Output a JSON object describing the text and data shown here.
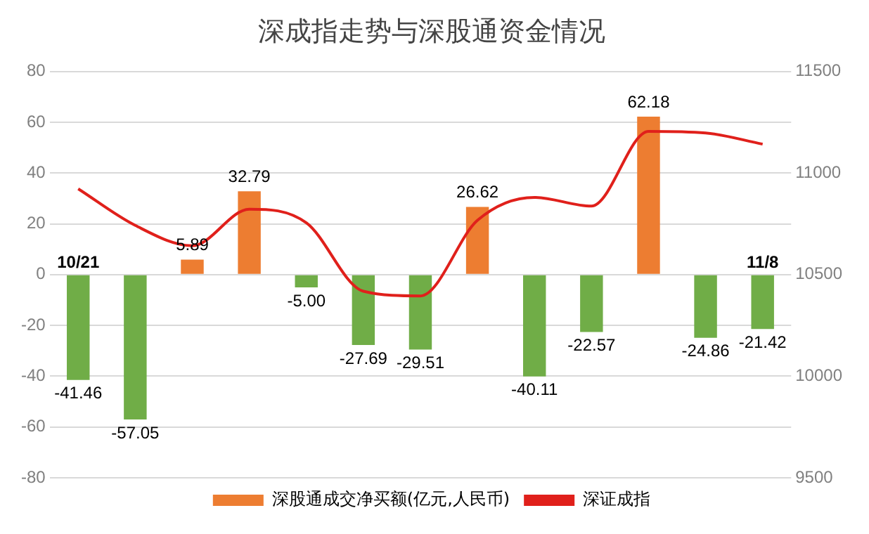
{
  "chart_data": {
    "type": "bar",
    "title": "深成指走势与深股通资金情况",
    "categories": [
      null,
      null,
      null,
      null,
      null,
      null,
      null,
      null,
      null,
      null,
      null,
      null,
      null
    ],
    "series": [
      {
        "name": "深股通成交净买额(亿元,人民币)",
        "color": "#ed7d31",
        "colors": [
          "#70ad47",
          "#70ad47",
          "#ed7d31",
          "#ed7d31",
          "#70ad47",
          "#70ad47",
          "#70ad47",
          "#ed7d31",
          "#70ad47",
          "#70ad47",
          "#ed7d31",
          "#70ad47",
          "#70ad47"
        ],
        "values": [
          -41.46,
          -57.05,
          5.89,
          32.79,
          -5.0,
          -27.69,
          -29.51,
          26.62,
          -40.11,
          -22.57,
          62.18,
          -24.86,
          -21.42
        ],
        "value_labels": [
          "-41.46",
          "-57.05",
          "5.89",
          "32.79",
          "-5.00",
          "-27.69",
          "-29.51",
          "26.62",
          "-40.11",
          "-22.57",
          "62.18",
          "-24.86",
          "-21.42"
        ]
      },
      {
        "name": "深证成指",
        "type": "line",
        "axis": "y2",
        "color": "#e0201b",
        "marker": "none",
        "values": [
          10922,
          10742,
          10642,
          10822,
          10755,
          10418,
          10395,
          10767,
          10880,
          10837,
          11205,
          11197,
          11142
        ]
      }
    ],
    "annotations": [
      "10/21",
      "11/8"
    ],
    "ylim": [
      -80,
      80
    ],
    "yticks": [
      -80,
      -60,
      -40,
      -20,
      0,
      20,
      40,
      60,
      80
    ],
    "y2lim": [
      9500,
      11500
    ],
    "y2ticks": [
      9500,
      10000,
      10500,
      11000,
      11500
    ],
    "grid": "y",
    "legend": "bottom"
  }
}
